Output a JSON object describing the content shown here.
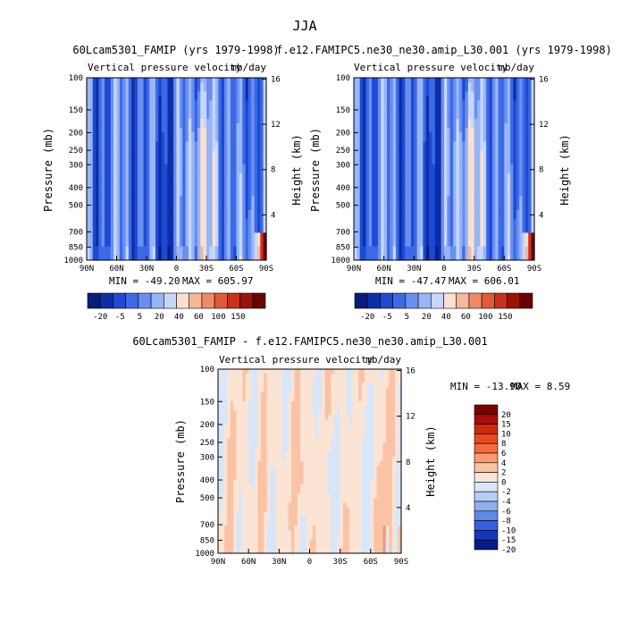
{
  "page_title": "JJA",
  "chart_data": [
    {
      "type": "heatmap",
      "title": "60Lcam5301_FAMIP (yrs 1979-1998)",
      "subtitle_left": "Vertical pressure velocity",
      "subtitle_right": "mb/day",
      "xlabel": "",
      "ylabel": "Pressure (mb)",
      "y2label": "Height (km)",
      "x_ticks": [
        "90N",
        "60N",
        "30N",
        "0",
        "30S",
        "60S",
        "90S"
      ],
      "y_ticks": [
        "100",
        "150",
        "200",
        "250",
        "300",
        "400",
        "500",
        "700",
        "850",
        "1000"
      ],
      "y2_ticks": [
        "16",
        "12",
        "8",
        "4"
      ],
      "min_label": "MIN = -49.20",
      "max_label": "MAX = 605.97",
      "colorbar_labels": [
        "-20",
        "-5",
        "5",
        "20",
        "40",
        "60",
        "100",
        "150"
      ],
      "colors": [
        "#081d7a",
        "#0c2fa8",
        "#1d49d4",
        "#3c6ae6",
        "#6a8ff0",
        "#98b5f6",
        "#c6d7fb",
        "#fbe0d2",
        "#f7b79a",
        "#f08a64",
        "#e05a38",
        "#c8311c",
        "#9c1306",
        "#6b0000"
      ],
      "pattern": "full"
    },
    {
      "type": "heatmap",
      "title": "f.e12.FAMIPC5.ne30_ne30.amip_L30.001 (yrs 1979-1998)",
      "subtitle_left": "Vertical pressure velocity",
      "subtitle_right": "mb/day",
      "xlabel": "",
      "ylabel": "Pressure (mb)",
      "y2label": "Height (km)",
      "x_ticks": [
        "90N",
        "60N",
        "30N",
        "0",
        "30S",
        "60S",
        "90S"
      ],
      "y_ticks": [
        "100",
        "150",
        "200",
        "250",
        "300",
        "400",
        "500",
        "700",
        "850",
        "1000"
      ],
      "y2_ticks": [
        "16",
        "12",
        "8",
        "4"
      ],
      "min_label": "MIN = -47.47",
      "max_label": "MAX = 606.01",
      "colorbar_labels": [
        "-20",
        "-5",
        "5",
        "20",
        "40",
        "60",
        "100",
        "150"
      ],
      "colors": [
        "#081d7a",
        "#0c2fa8",
        "#1d49d4",
        "#3c6ae6",
        "#6a8ff0",
        "#98b5f6",
        "#c6d7fb",
        "#fbe0d2",
        "#f7b79a",
        "#f08a64",
        "#e05a38",
        "#c8311c",
        "#9c1306",
        "#6b0000"
      ],
      "pattern": "full"
    },
    {
      "type": "heatmap",
      "title": "60Lcam5301_FAMIP - f.e12.FAMIPC5.ne30_ne30.amip_L30.001",
      "subtitle_left": "Vertical pressure velocity",
      "subtitle_right": "mb/day",
      "xlabel": "",
      "ylabel": "Pressure (mb)",
      "y2label": "Height (km)",
      "x_ticks": [
        "90N",
        "60N",
        "30N",
        "0",
        "30S",
        "60S",
        "90S"
      ],
      "y_ticks": [
        "100",
        "150",
        "200",
        "250",
        "300",
        "400",
        "500",
        "700",
        "850",
        "1000"
      ],
      "y2_ticks": [
        "16",
        "12",
        "8",
        "4"
      ],
      "min_label": "MIN = -13.90",
      "max_label": "MAX =   8.59",
      "colorbar_labels": [
        "20",
        "15",
        "10",
        "8",
        "6",
        "4",
        "2",
        "0",
        "-2",
        "-4",
        "-6",
        "-8",
        "-10",
        "-15",
        "-20"
      ],
      "colors": [
        "#7a0000",
        "#a80c0c",
        "#cc2a10",
        "#e8481e",
        "#f56a3c",
        "#f99a70",
        "#fbc3a6",
        "#fbe4d4",
        "#d8e6fa",
        "#b6cdf6",
        "#8eafee",
        "#5f89ea",
        "#3260e0",
        "#1437c0",
        "#081a86"
      ],
      "pattern": "diff"
    }
  ]
}
